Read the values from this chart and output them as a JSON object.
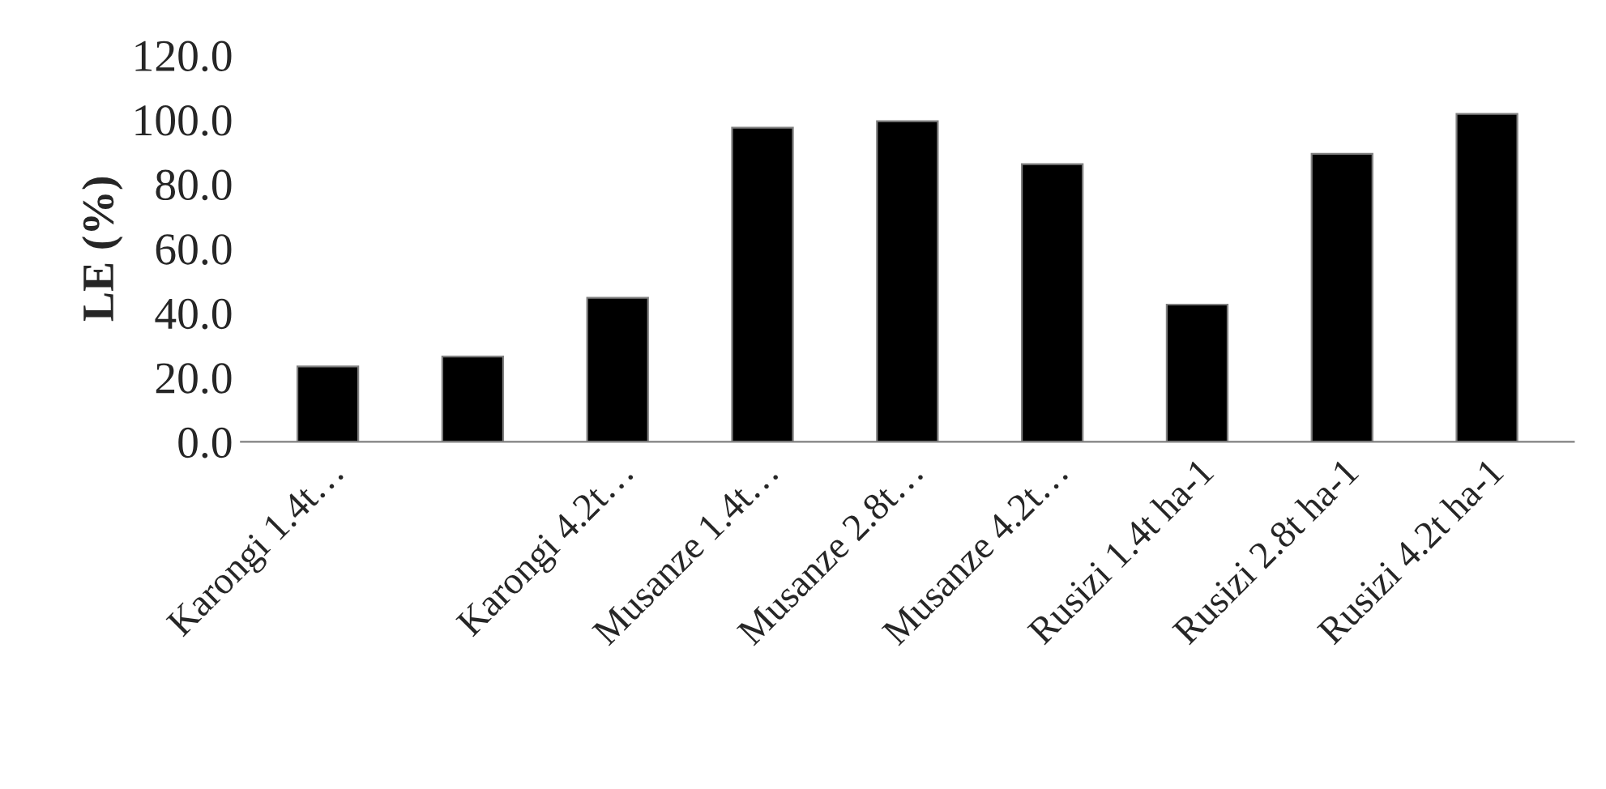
{
  "chart_data": {
    "type": "bar",
    "ylabel": "LE (%)",
    "categories": [
      "Karongi 1.4t…",
      null,
      "Karongi 4.2t…",
      "Musanze 1.4t…",
      "Musanze 2.8t…",
      "Musanze 4.2t…",
      "Rusizi 1.4t ha-1",
      "Rusizi 2.8t ha-1",
      "Rusizi 4.2t ha-1"
    ],
    "values": [
      23.4,
      26.5,
      44.7,
      97.5,
      99.5,
      86.2,
      42.6,
      89.4,
      101.8
    ],
    "color": "#000000",
    "ylim": [
      0,
      120
    ],
    "yticks": [
      {
        "value": 0,
        "label": "0.0"
      },
      {
        "value": 20,
        "label": "20.0"
      },
      {
        "value": 40,
        "label": "40.0"
      },
      {
        "value": 60,
        "label": "60.0"
      },
      {
        "value": 80,
        "label": "80.0"
      },
      {
        "value": 100,
        "label": "100.0"
      },
      {
        "value": 120,
        "label": "120.0"
      }
    ],
    "grid": false,
    "legend": false
  }
}
